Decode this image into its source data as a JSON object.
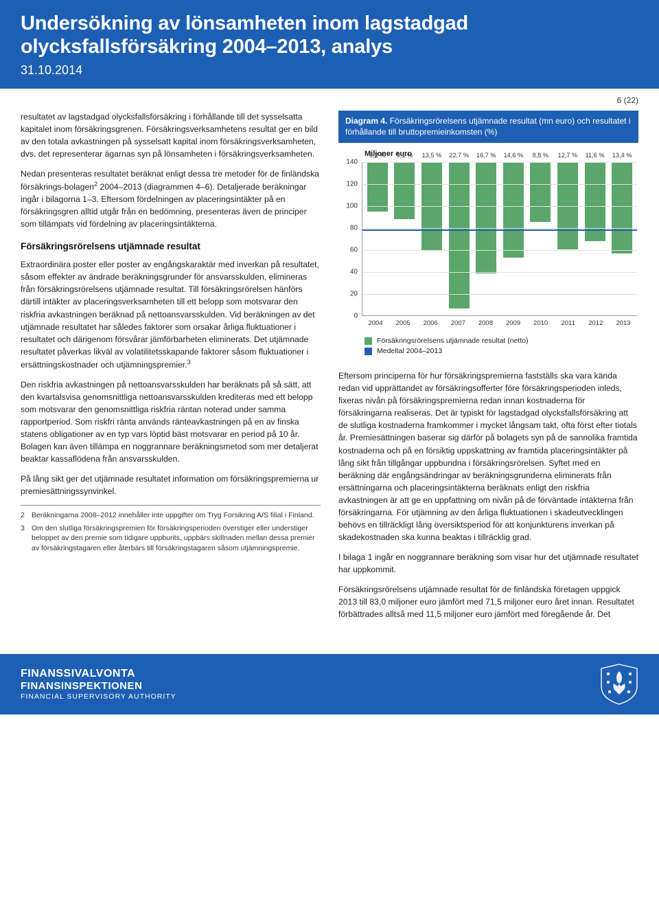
{
  "header": {
    "title": "Undersökning av lönsamheten inom lagstadgad olycksfallsförsäkring 2004–2013, analys",
    "date": "31.10.2014"
  },
  "page_marker": "6 (22)",
  "left": {
    "p1": "resultatet av lagstadgad olycksfallsförsäkring i förhållande till det sysselsatta kapitalet inom försäkringsgrenen. Försäkringsverksamhetens resultat ger en bild av den totala avkastningen på sysselsatt kapital inom försäkringsverksamheten, dvs. det representerar ägarnas syn på lönsamheten i försäkringsverksamheten.",
    "p2a": "Nedan presenteras resultatet beräknat enligt dessa tre metoder för de finländska försäkrings-bolagen",
    "p2b": " 2004–2013 (diagrammen 4–6). Detaljerade beräkningar ingår i bilagorna 1–3. Eftersom fördelningen av placeringsintäkter på en försäkringsgren alltid utgår från en bedömning, presenteras även de principer som tillämpats vid fördelning av placeringsintäkterna.",
    "h3": "Försäkringsrörelsens utjämnade resultat",
    "p3a": "Extraordinära poster eller poster av engångskaraktär med inverkan på resultatet, såsom effekter av ändrade beräkningsgrunder för ansvarsskulden, elimineras från försäkringsrörelsens utjämnade resultat. Till försäkringsrörelsen hänförs därtill intäkter av placeringsverksamheten till ett belopp som motsvarar den riskfria avkastningen beräknad på nettoansvarsskulden. Vid beräkningen av det utjämnade resultatet har således faktorer som orsakar årliga fluktuationer i resultatet och därigenom försvårar jämförbarheten eliminerats. Det utjämnade resultatet påverkas likväl av volatilitetsskapande faktorer såsom fluktuationer i ersättningskostnader och utjämningspremier.",
    "p4": "Den riskfria avkastningen på nettoansvarsskulden har beräknats på så sätt, att den kvartalsvisa genomsnittliga nettoansvarsskulden krediteras med ett belopp som motsvarar den genomsnittliga riskfria räntan noterad under samma rapportperiod. Som riskfri ränta används ränteavkastningen på en av finska statens obligationer av en typ vars löptid bäst motsvarar en period på 10 år. Bolagen kan även tillämpa en noggrannare beräkningsmetod som mer detaljerat beaktar kassaflödena från ansvarsskulden.",
    "p5": "På lång sikt ger det utjämnade resultatet information om försäkringspremierna ur premiesättningssynvinkel.",
    "fn2": "Beräkningarna 2008–2012 innehåller inte uppgifter om Tryg Forsikring A/S filial i Finland.",
    "fn3": "Om den slutliga försäkringspremien för försäkringsperioden överstiger eller understiger beloppet av den premie som tidigare uppburits, uppbärs skillnaden mellan dessa premier av försäkringstagaren eller återbärs till försäkringstagaren såsom utjämningspremie."
  },
  "diagram": {
    "caption_bold": "Diagram 4.",
    "caption_rest": " Försäkringsrörelsens utjämnade resultat (mn euro) och resultatet i förhållande till bruttopremieinkomsten (%)",
    "ylabel": "Miljoner euro",
    "type": "bar",
    "ymin": 0,
    "ymax": 140,
    "ytick_step": 20,
    "yticks": [
      0,
      20,
      40,
      60,
      80,
      100,
      120,
      140
    ],
    "avg_value": 79,
    "categories": [
      "2004",
      "2005",
      "2006",
      "2007",
      "2008",
      "2009",
      "2010",
      "2011",
      "2012",
      "2013"
    ],
    "bars": [
      {
        "value": 45,
        "label": "8,2 %"
      },
      {
        "value": 52,
        "label": "9,1 %"
      },
      {
        "value": 80,
        "label": "13,5 %"
      },
      {
        "value": 133,
        "label": "22,7 %"
      },
      {
        "value": 101,
        "label": "16,7 %"
      },
      {
        "value": 87,
        "label": "14,6 %"
      },
      {
        "value": 54,
        "label": "8,8 %"
      },
      {
        "value": 79,
        "label": "12,7 %"
      },
      {
        "value": 72,
        "label": "11,6 %"
      },
      {
        "value": 83,
        "label": "13,4 %"
      }
    ],
    "bar_color": "#5aa66b",
    "line_color": "#1d5fb3",
    "grid_color": "#e0e0e0",
    "background": "#ffffff",
    "legend1": "Försäkringsrörelsens utjämnade resultat (netto)",
    "legend2": "Medeltal 2004–2013"
  },
  "right": {
    "p1": "Eftersom principerna för hur försäkringspremierna fastställs ska vara kända redan vid upprättandet av försäkringsofferter före försäkringsperioden inleds, fixeras nivån på försäkringspremierna redan innan kostnaderna för försäkringarna realiseras. Det är typiskt för lagstadgad olycksfallsförsäkring att de slutliga kostnaderna framkommer i mycket långsam takt, ofta först efter tiotals år. Premiesättningen baserar sig därför på bolagets syn på de sannolika framtida kostnaderna och på en försiktig uppskattning av framtida placeringsintäkter på lång sikt från tillgångar uppbundna i försäkringsrörelsen. Syftet med en beräkning där engångsändringar av beräkningsgrunderna eliminerats från ersättningarna och placeringsintäkterna beräknats enligt den riskfria avkastningen är att ge en uppfattning om nivån på de förväntade intäkterna från försäkringarna. För utjämning av den årliga fluktuationen i skadeutvecklingen behövs en tillräckligt lång översiktsperiod för att konjunkturens inverkan på skadekostnaden ska kunna beaktas i tillräcklig grad.",
    "p2": "I bilaga 1 ingår en noggrannare beräkning som visar hur det utjämnade resultatet har uppkommit.",
    "p3": "Försäkringsrörelsens utjämnade resultat för de finländska företagen uppgick 2013 till 83,0 miljoner euro jämfört med 71,5 miljoner euro året innan. Resultatet förbättrades alltså med 11,5 miljoner euro jämfört med föregående år. Det"
  },
  "footer": {
    "l1": "FINANSSIVALVONTA",
    "l2": "FINANSINSPEKTIONEN",
    "l3": "FINANCIAL SUPERVISORY AUTHORITY"
  }
}
